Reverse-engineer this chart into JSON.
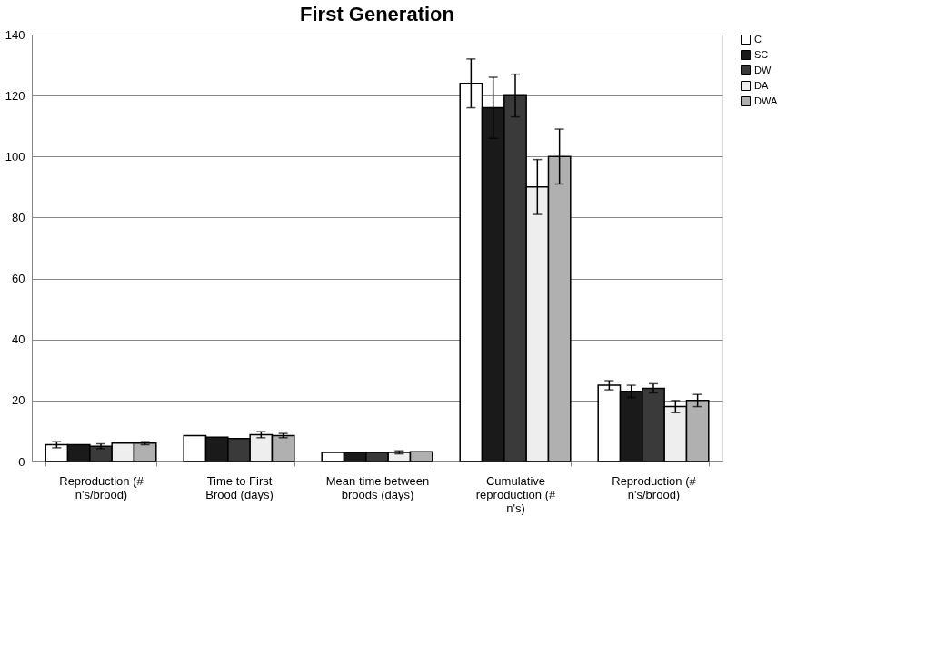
{
  "chart_data": {
    "type": "bar",
    "title": "First Generation",
    "categories": [
      "Reproduction (# n's/brood)",
      "Time to First Brood (days)",
      "Mean time between broods (days)",
      "Cumulative reproduction (# n's)",
      "Reproduction (# n's/brood)"
    ],
    "series": [
      {
        "name": "C",
        "color": "#ffffff",
        "values": [
          5.5,
          8.5,
          3,
          124,
          25
        ],
        "errors": [
          1,
          null,
          null,
          8,
          1.5
        ]
      },
      {
        "name": "SC",
        "color": "#1a1a1a",
        "values": [
          5.5,
          8,
          3,
          116,
          23
        ],
        "errors": [
          null,
          null,
          null,
          10,
          2
        ]
      },
      {
        "name": "DW",
        "color": "#3a3a3a",
        "values": [
          5,
          7.5,
          3,
          120,
          24
        ],
        "errors": [
          0.8,
          null,
          null,
          7,
          1.5
        ]
      },
      {
        "name": "DA",
        "color": "#eeeeee",
        "values": [
          6,
          8.8,
          3,
          90,
          18
        ],
        "errors": [
          null,
          1,
          0.5,
          9,
          2
        ]
      },
      {
        "name": "DWA",
        "color": "#b0b0b0",
        "values": [
          6,
          8.5,
          3.2,
          100,
          20
        ],
        "errors": [
          0.5,
          0.7,
          null,
          9,
          2
        ]
      }
    ],
    "ylim": [
      0,
      140
    ],
    "yticks": [
      0,
      20,
      40,
      60,
      80,
      100,
      120,
      140
    ],
    "grid": "y",
    "legend": "top right"
  }
}
